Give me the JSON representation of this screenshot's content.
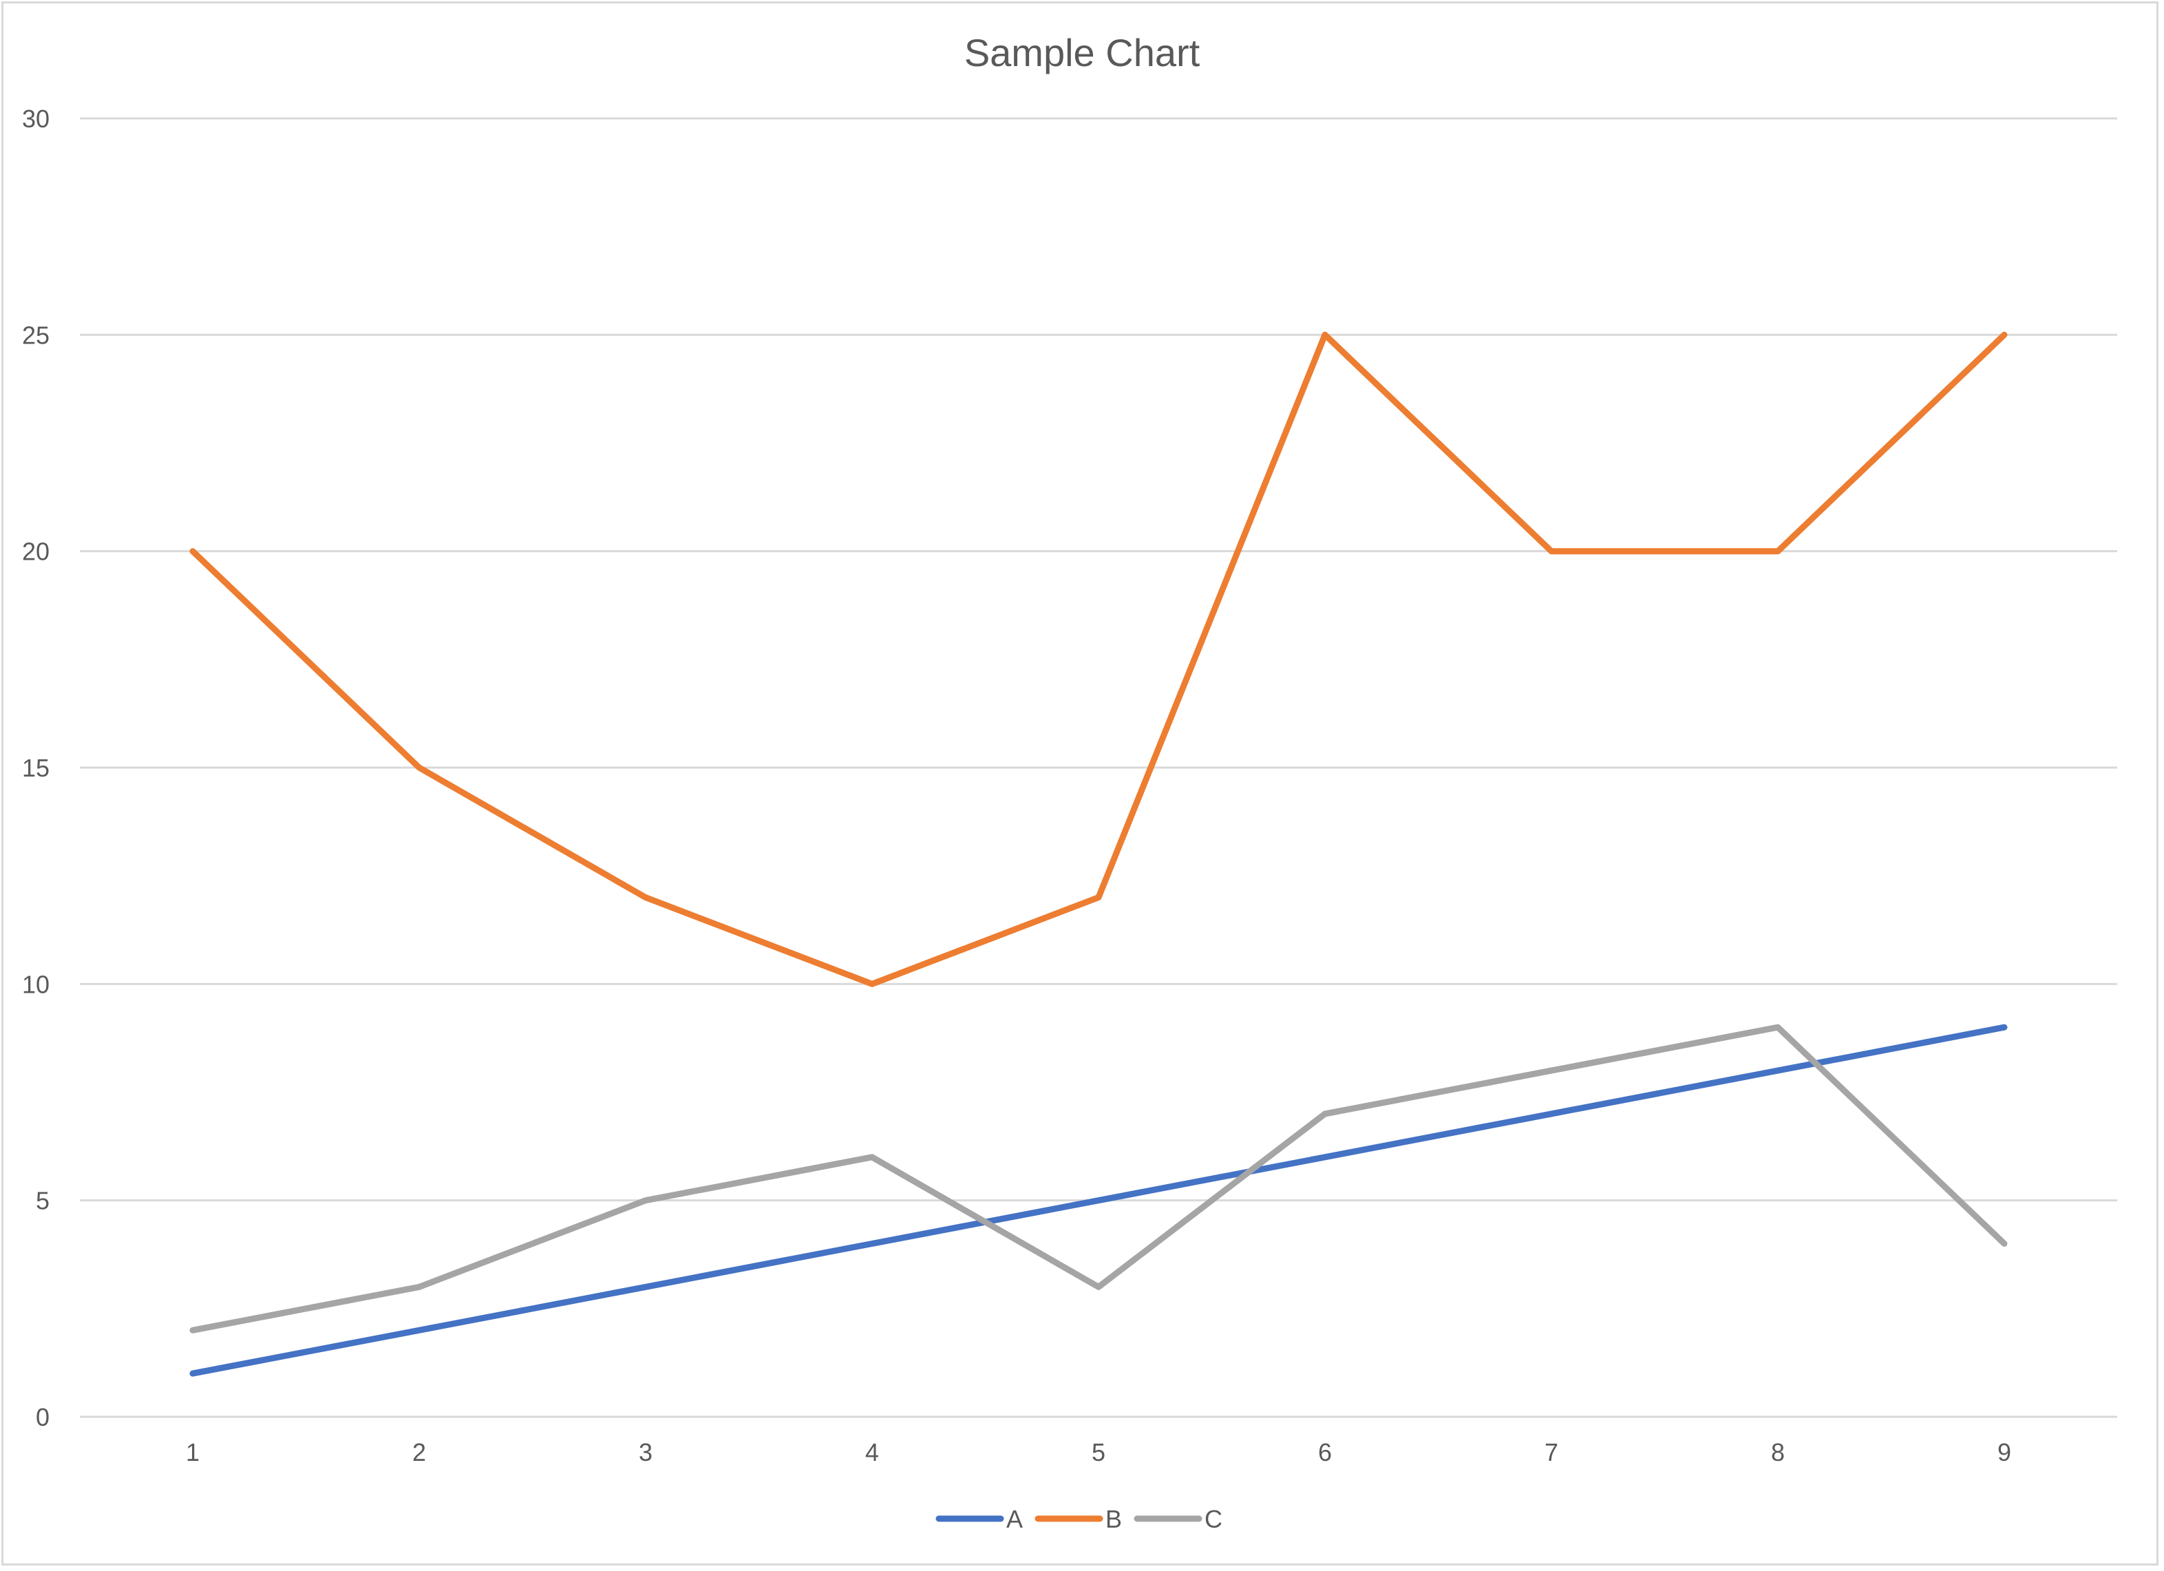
{
  "chart_data": {
    "type": "line",
    "title": "Sample Chart",
    "xlabel": "",
    "ylabel": "",
    "categories": [
      "1",
      "2",
      "3",
      "4",
      "5",
      "6",
      "7",
      "8",
      "9"
    ],
    "ylim": [
      0,
      30
    ],
    "yticks": [
      0,
      5,
      10,
      15,
      20,
      25,
      30
    ],
    "grid": true,
    "legend_position": "bottom",
    "series": [
      {
        "name": "A",
        "color": "#4472C4",
        "values": [
          1,
          2,
          3,
          4,
          5,
          6,
          7,
          8,
          9
        ]
      },
      {
        "name": "B",
        "color": "#ED7D31",
        "values": [
          20,
          15,
          12,
          10,
          12,
          25,
          20,
          20,
          25
        ]
      },
      {
        "name": "C",
        "color": "#A5A5A5",
        "values": [
          2,
          3,
          5,
          6,
          3,
          7,
          8,
          9,
          4
        ]
      }
    ]
  }
}
